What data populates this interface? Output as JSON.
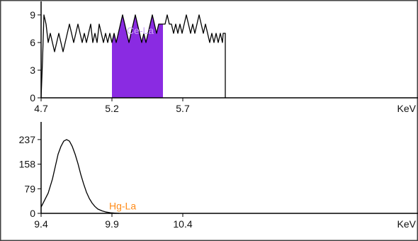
{
  "colors": {
    "background": "#ffffff",
    "trace": "#000000",
    "highlight_fill": "#8a2be2",
    "highlight_label": "#c9a6f5",
    "peak_label": "#ff8c1a"
  },
  "chart_data": [
    {
      "type": "line",
      "title": "",
      "xlabel": "KeV",
      "ylabel": "",
      "xlim": [
        4.7,
        6.05
      ],
      "ylim": [
        0,
        10
      ],
      "grid": false,
      "x_ticks": [
        4.7,
        5.2,
        5.7
      ],
      "x_tick_labels": [
        "4.7",
        "5.2",
        "5.7"
      ],
      "y_ticks": [
        0,
        3,
        6,
        9
      ],
      "y_tick_labels": [
        "0",
        "3",
        "6",
        "9"
      ],
      "highlight": {
        "label": "Ce-La",
        "x_start": 5.2,
        "x_end": 5.56
      },
      "series": [
        {
          "x": [
            4.7,
            4.71,
            4.72,
            4.735,
            4.75,
            4.765,
            4.78,
            4.795,
            4.81,
            4.825,
            4.84,
            4.855,
            4.87,
            4.885,
            4.9,
            4.915,
            4.93,
            4.945,
            4.96,
            4.975,
            4.99,
            5.005,
            5.02,
            5.035,
            5.05,
            5.065,
            5.08,
            5.095,
            5.11,
            5.125,
            5.14,
            5.155,
            5.17,
            5.185,
            5.2,
            5.215,
            5.23,
            5.245,
            5.26,
            5.275,
            5.29,
            5.305,
            5.32,
            5.335,
            5.35,
            5.365,
            5.38,
            5.395,
            5.41,
            5.425,
            5.44,
            5.455,
            5.47,
            5.485,
            5.5,
            5.515,
            5.53,
            5.545,
            5.56,
            5.575,
            5.59,
            5.605,
            5.62,
            5.635,
            5.65,
            5.665,
            5.68,
            5.695,
            5.71,
            5.725,
            5.74,
            5.755,
            5.77,
            5.785,
            5.8,
            5.815,
            5.83,
            5.845,
            5.86,
            5.875,
            5.89,
            5.905,
            5.92,
            5.935,
            5.95,
            5.965,
            5.98,
            5.985,
            6.0,
            6.0
          ],
          "y": [
            0,
            4,
            9,
            8,
            6,
            7,
            6,
            5,
            6,
            7,
            6,
            5,
            6,
            7,
            8,
            7,
            6,
            7,
            8,
            7,
            6,
            7,
            6,
            7,
            8,
            6,
            7,
            6,
            8,
            7,
            6,
            7,
            6,
            7,
            6,
            7,
            6,
            7,
            8,
            9,
            8,
            7,
            6,
            7,
            8,
            9,
            8,
            7,
            6,
            7,
            6,
            7,
            8,
            9,
            8,
            7,
            8,
            8,
            8,
            8,
            9,
            8,
            8,
            7,
            8,
            7,
            8,
            7,
            8,
            9,
            8,
            7,
            8,
            7,
            8,
            9,
            8,
            7,
            8,
            7,
            6,
            7,
            6,
            7,
            6,
            7,
            6,
            7,
            7,
            0
          ]
        }
      ]
    },
    {
      "type": "line",
      "title": "",
      "xlabel": "KeV",
      "ylabel": "",
      "xlim": [
        9.4,
        10.7
      ],
      "ylim": [
        0,
        280
      ],
      "grid": false,
      "x_ticks": [
        9.4,
        9.9,
        10.4
      ],
      "x_tick_labels": [
        "9.4",
        "9.9",
        "10.4"
      ],
      "y_ticks": [
        0,
        79,
        158,
        237
      ],
      "y_tick_labels": [
        "0",
        "79",
        "158",
        "237"
      ],
      "annotation": {
        "label": "Hg-La",
        "x": 9.9,
        "y": 8
      },
      "series": [
        {
          "x": [
            9.4,
            9.42,
            9.45,
            9.48,
            9.5,
            9.52,
            9.54,
            9.56,
            9.58,
            9.6,
            9.62,
            9.64,
            9.66,
            9.68,
            9.7,
            9.72,
            9.74,
            9.76,
            9.78,
            9.8,
            9.83,
            9.86,
            9.89,
            9.92,
            9.95
          ],
          "y": [
            20,
            38,
            65,
            110,
            150,
            190,
            215,
            232,
            237,
            232,
            215,
            190,
            160,
            125,
            95,
            68,
            48,
            33,
            22,
            14,
            8,
            4,
            2,
            1,
            0
          ]
        }
      ]
    }
  ]
}
